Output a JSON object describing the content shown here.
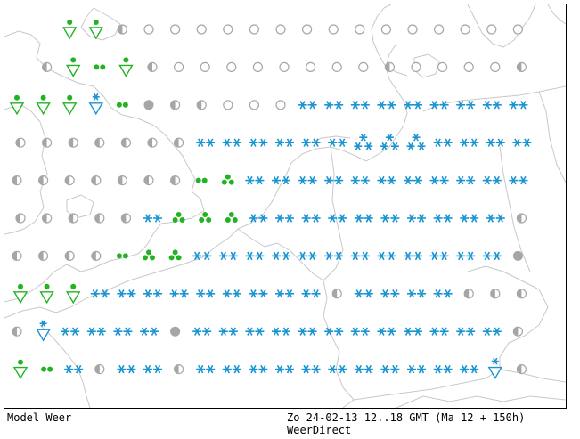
{
  "footer": {
    "model_label": "Model Weer",
    "datetime": "Zo 24-02-13 12..18 GMT (Ma 12 + 150h)",
    "site": "WeerDirect"
  },
  "colors": {
    "background": "#ffffff",
    "coastline": "#c8c8c8",
    "snow": "#1a94d2",
    "rain": "#22b322",
    "dry": "#a6a6a6"
  },
  "symbol_types": {
    "C": "cloudy-dry-circle",
    "H": "half-cloudy-circle",
    "D": "dark-cloud-dot",
    "S": "snow-showers-double-asterisk",
    "T": "snow-showers-triple-asterisk",
    "V": "snow-shower-triangle",
    "R": "rain-shower-triangle",
    "P": "rain-double-dot",
    "Q": "rain-triple-dot"
  },
  "grid_rows": [
    "..RRHCCCCCCCCCCCCCCC",
    ".HRPRHCCCCCCCCHCCCCH",
    "RRRVPDHHCCCSSSSSSSSS",
    "HHHHHHHSSSSSSTTTSSSS",
    "HHHHHHHPQSSSSSSSSSSS",
    "HHHHHSQQQSSSSSSSSSSH",
    "HHHHPQQSSSSSSSSSSSSD",
    "RRRSSSSSSSSSHSSSSHHH",
    "HVSSSSDSSSSSSSSSSSSH",
    "RPSHSSHSSSSSSSSSSSVH"
  ]
}
